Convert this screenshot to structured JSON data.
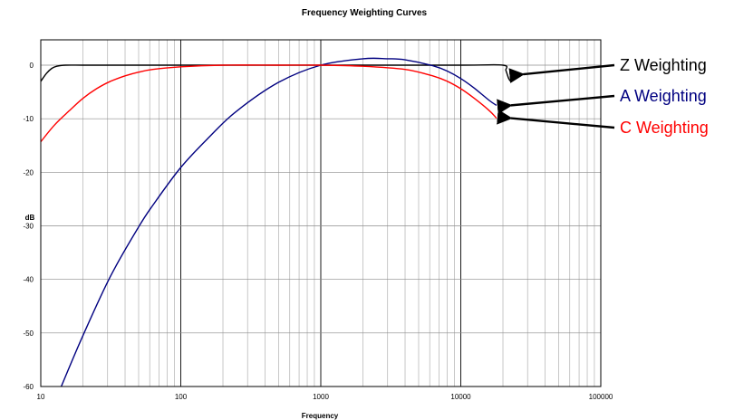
{
  "chart_data": {
    "type": "line",
    "title": "Frequency Weighting Curves",
    "xlabel": "Frequency",
    "ylabel": "dB",
    "x_scale": "log",
    "xlim": [
      10,
      100000
    ],
    "ylim": [
      -60,
      0
    ],
    "x_ticks": [
      "10",
      "100",
      "1000",
      "10000",
      "100000"
    ],
    "y_ticks": [
      "0",
      "-10",
      "-20",
      "-30",
      "-40",
      "-50",
      "-60"
    ],
    "grid": true,
    "legend_position": "right",
    "series": [
      {
        "name": "Z Weighting",
        "color": "#000000",
        "x": [
          10,
          11,
          12,
          13,
          15,
          20,
          30,
          100,
          1000,
          10000,
          20000,
          21000,
          22000,
          23000
        ],
        "y": [
          -3,
          -1.5,
          -0.6,
          -0.2,
          0,
          0,
          0,
          0,
          0,
          0,
          0,
          -1,
          -2.5,
          -3.2
        ]
      },
      {
        "name": "A Weighting",
        "color": "#000080",
        "x": [
          14,
          20,
          31.5,
          50,
          63,
          100,
          160,
          250,
          500,
          1000,
          2000,
          3000,
          4000,
          6300,
          8000,
          10000,
          12500,
          16000,
          18000
        ],
        "y": [
          -60,
          -50.5,
          -39.4,
          -30.2,
          -26.2,
          -19.1,
          -13.4,
          -8.6,
          -3.2,
          0,
          1.2,
          1.2,
          1.0,
          -0.1,
          -1.1,
          -2.5,
          -4.3,
          -6.6,
          -7.5
        ]
      },
      {
        "name": "C Weighting",
        "color": "#ff0000",
        "x": [
          10,
          12.5,
          16,
          20,
          25,
          31.5,
          40,
          50,
          63,
          100,
          200,
          500,
          1000,
          2000,
          4000,
          6300,
          8000,
          10000,
          12500,
          16000,
          18000
        ],
        "y": [
          -14.3,
          -11.2,
          -8.5,
          -6.2,
          -4.4,
          -3.0,
          -2.0,
          -1.3,
          -0.8,
          -0.3,
          0,
          0,
          0,
          -0.2,
          -0.8,
          -2.0,
          -3.0,
          -4.4,
          -6.2,
          -8.5,
          -9.9
        ]
      }
    ],
    "annotations": [
      {
        "text": "Z Weighting",
        "color": "#000000",
        "points_to_x": 22000,
        "points_to_y": -1.7
      },
      {
        "text": "A Weighting",
        "color": "#000080",
        "points_to_x": 18000,
        "points_to_y": -7.5
      },
      {
        "text": "C Weighting",
        "color": "#ff0000",
        "points_to_x": 18000,
        "points_to_y": -9.9
      }
    ]
  }
}
